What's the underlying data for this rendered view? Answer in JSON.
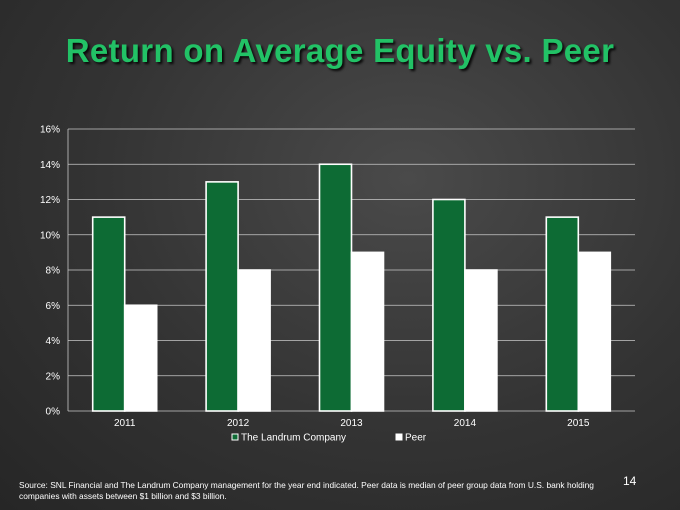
{
  "slide": {
    "title": "Return on Average Equity vs. Peer",
    "page_number": "14",
    "source": "Source:  SNL Financial and The Landrum Company management for the year end indicated. Peer data is median of peer group data from U.S. bank holding companies with assets between $1 billion and $3 billion."
  },
  "colors": {
    "title": "#22c266",
    "landrum": "#0d6b34",
    "peer": "#ffffff"
  },
  "chart_data": {
    "type": "bar",
    "categories": [
      "2011",
      "2012",
      "2013",
      "2014",
      "2015"
    ],
    "series": [
      {
        "name": "The Landrum Company",
        "values": [
          11,
          13,
          14,
          12,
          11
        ]
      },
      {
        "name": "Peer",
        "values": [
          6,
          8,
          9,
          8,
          9
        ]
      }
    ],
    "ylim": [
      0,
      16
    ],
    "yticks": [
      0,
      2,
      4,
      6,
      8,
      10,
      12,
      14,
      16
    ],
    "ytick_labels": [
      "0%",
      "2%",
      "4%",
      "6%",
      "8%",
      "10%",
      "12%",
      "14%",
      "16%"
    ],
    "grid": true,
    "legend": "bottom"
  }
}
